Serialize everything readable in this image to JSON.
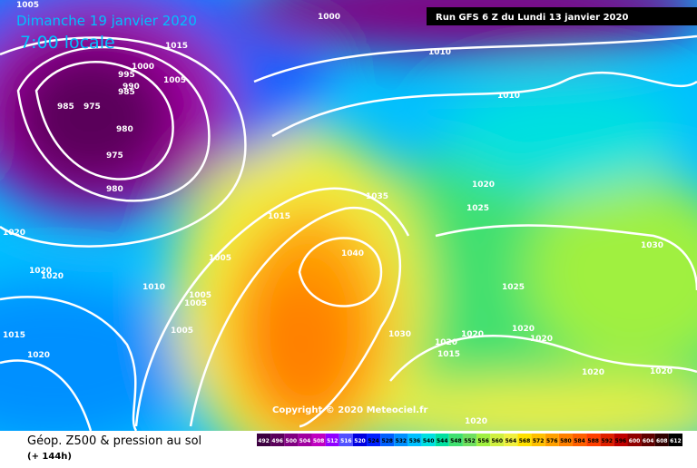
{
  "header": {
    "date": "Dimanche 19 janvier 2020",
    "time": "7:00 locale",
    "run": "Run GFS 6 Z du Lundi 13 janvier 2020"
  },
  "isobar_labels": [
    "1005",
    "1000",
    "1015",
    "1010",
    "1000",
    "995",
    "990",
    "985",
    "1005",
    "985",
    "975",
    "980",
    "975",
    "980",
    "1010",
    "1020",
    "1035",
    "1025",
    "1015",
    "1020",
    "1030",
    "1040",
    "1005",
    "1020",
    "1020",
    "1010",
    "1025",
    "1005",
    "1005",
    "1005",
    "1020",
    "1030",
    "1015",
    "1020",
    "1020",
    "1020",
    "1015",
    "1020",
    "1020",
    "1020",
    "1020"
  ],
  "copyright": "Copyright © 2020 Meteociel.fr",
  "footer": {
    "title": "Géop. Z500 & pression au sol",
    "lead": "(+ 144h)"
  },
  "legend": {
    "values": [
      492,
      496,
      500,
      504,
      508,
      512,
      516,
      520,
      524,
      528,
      532,
      536,
      540,
      544,
      548,
      552,
      556,
      560,
      564,
      568,
      572,
      576,
      580,
      584,
      588,
      592,
      596,
      600,
      604,
      608,
      612
    ],
    "colors": [
      "#3c0040",
      "#5a005a",
      "#800080",
      "#a000a0",
      "#c000c0",
      "#9000ff",
      "#5050ff",
      "#0000e0",
      "#0020ff",
      "#0060ff",
      "#0090ff",
      "#00c0ff",
      "#00e0e0",
      "#00e0a0",
      "#40e070",
      "#70e060",
      "#a0f040",
      "#d0f040",
      "#f0f040",
      "#ffe000",
      "#ffc000",
      "#ffa000",
      "#ff8000",
      "#ff6000",
      "#ff4000",
      "#e02000",
      "#c00000",
      "#900000",
      "#600000",
      "#300000",
      "#000000"
    ]
  }
}
